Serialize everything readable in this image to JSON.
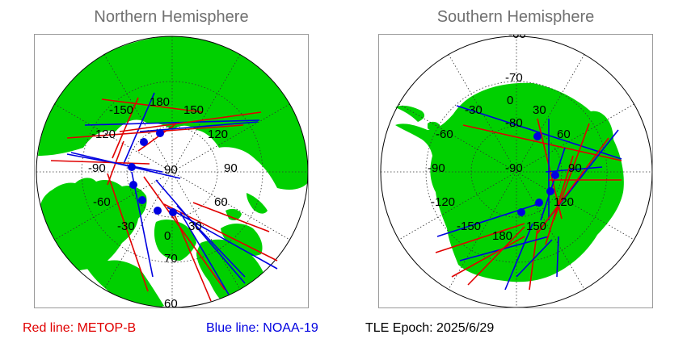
{
  "north": {
    "title": "Northern Hemisphere",
    "lon_labels": [
      "180",
      "-150",
      "150",
      "-120",
      "120",
      "-90",
      "90",
      "90",
      "-60",
      "60",
      "-30",
      "30",
      "0"
    ],
    "lat_labels": [
      "70",
      "60"
    ]
  },
  "south": {
    "title": "Southern Hemisphere",
    "lat_labels": [
      "-60",
      "-70",
      "-80",
      "-90"
    ],
    "lon_labels": [
      "0",
      "-30",
      "30",
      "-60",
      "60",
      "-90",
      "90",
      "-120",
      "120",
      "-150",
      "150",
      "180"
    ]
  },
  "legend": {
    "red": "Red line: METOP-B",
    "blue": "Blue line: NOAA-19",
    "epoch": "TLE Epoch: 2025/6/29"
  },
  "colors": {
    "land": "#00d000",
    "ocean": "#ffffff",
    "grid": "#333333",
    "metop": "#e00000",
    "noaa": "#0000e0",
    "title": "#707070"
  }
}
